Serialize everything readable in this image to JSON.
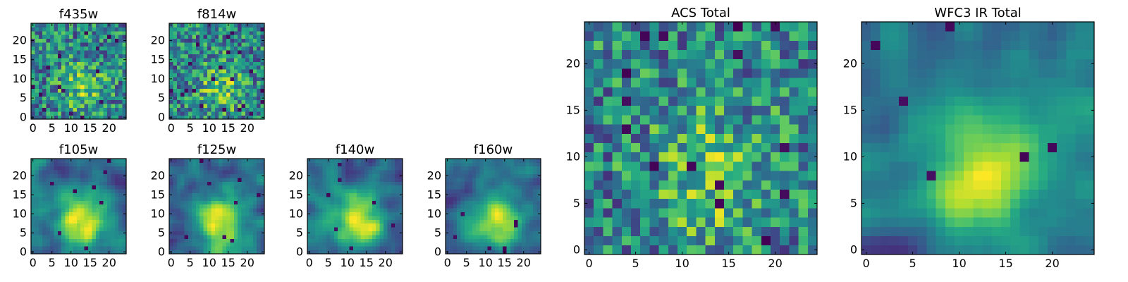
{
  "chart_data": [
    {
      "type": "heatmap",
      "title": "f435w",
      "xticks": [
        0,
        5,
        10,
        15,
        20
      ],
      "yticks": [
        0,
        5,
        10,
        15,
        20
      ],
      "xlim": [
        0,
        25
      ],
      "ylim": [
        0,
        25
      ],
      "grid_size": 25,
      "texture": "noise",
      "seed": 11,
      "colormap": "viridis"
    },
    {
      "type": "heatmap",
      "title": "f814w",
      "xticks": [
        0,
        5,
        10,
        15,
        20
      ],
      "yticks": [
        0,
        5,
        10,
        15,
        20
      ],
      "xlim": [
        0,
        25
      ],
      "ylim": [
        0,
        25
      ],
      "grid_size": 25,
      "texture": "noise",
      "seed": 23,
      "colormap": "viridis"
    },
    {
      "type": "heatmap",
      "title": "f105w",
      "xticks": [
        0,
        5,
        10,
        15,
        20
      ],
      "yticks": [
        0,
        5,
        10,
        15,
        20
      ],
      "xlim": [
        0,
        25
      ],
      "ylim": [
        0,
        25
      ],
      "grid_size": 25,
      "texture": "smooth",
      "seed": 37,
      "colormap": "viridis"
    },
    {
      "type": "heatmap",
      "title": "f125w",
      "xticks": [
        0,
        5,
        10,
        15,
        20
      ],
      "yticks": [
        0,
        5,
        10,
        15,
        20
      ],
      "xlim": [
        0,
        25
      ],
      "ylim": [
        0,
        25
      ],
      "grid_size": 25,
      "texture": "smooth",
      "seed": 41,
      "colormap": "viridis"
    },
    {
      "type": "heatmap",
      "title": "f140w",
      "xticks": [
        0,
        5,
        10,
        15,
        20
      ],
      "yticks": [
        0,
        5,
        10,
        15,
        20
      ],
      "xlim": [
        0,
        25
      ],
      "ylim": [
        0,
        25
      ],
      "grid_size": 25,
      "texture": "smooth",
      "seed": 53,
      "colormap": "viridis"
    },
    {
      "type": "heatmap",
      "title": "f160w",
      "xticks": [
        0,
        5,
        10,
        15,
        20
      ],
      "yticks": [
        0,
        5,
        10,
        15,
        20
      ],
      "xlim": [
        0,
        25
      ],
      "ylim": [
        0,
        25
      ],
      "grid_size": 25,
      "texture": "smooth",
      "seed": 67,
      "colormap": "viridis"
    },
    {
      "type": "heatmap",
      "title": "ACS Total",
      "xticks": [
        0,
        5,
        10,
        15,
        20
      ],
      "yticks": [
        0,
        5,
        10,
        15,
        20
      ],
      "xlim": [
        0,
        25
      ],
      "ylim": [
        0,
        25
      ],
      "grid_size": 25,
      "texture": "noise",
      "seed": 79,
      "colormap": "viridis"
    },
    {
      "type": "heatmap",
      "title": "WFC3 IR Total",
      "xticks": [
        0,
        5,
        10,
        15,
        20
      ],
      "yticks": [
        0,
        5,
        10,
        15,
        20
      ],
      "xlim": [
        0,
        25
      ],
      "ylim": [
        0,
        25
      ],
      "grid_size": 25,
      "texture": "smooth",
      "seed": 97,
      "colormap": "viridis"
    }
  ]
}
